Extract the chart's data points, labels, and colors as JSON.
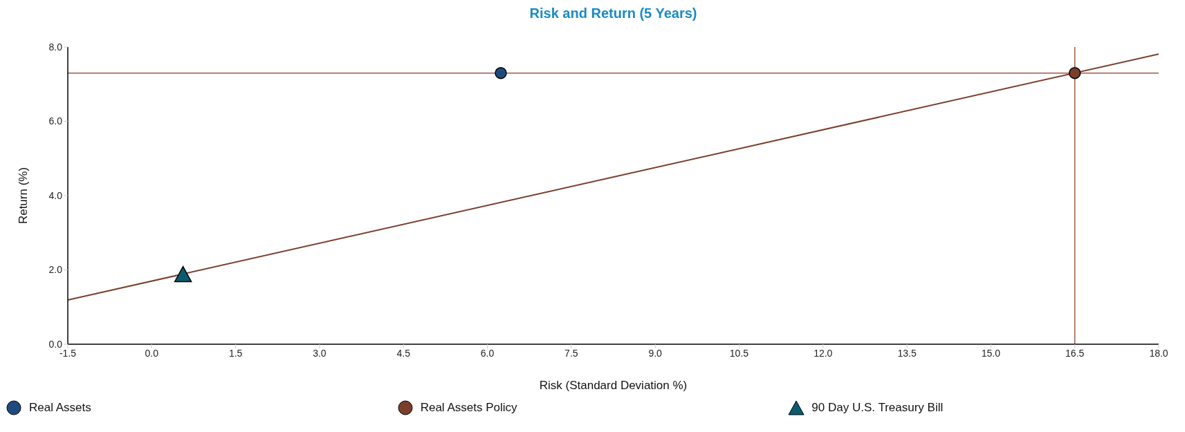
{
  "chart_data": {
    "type": "scatter",
    "title": "Risk and Return (5 Years)",
    "xlabel": "Risk (Standard Deviation %)",
    "ylabel": "Return (%)",
    "xlim": [
      -1.5,
      18
    ],
    "xticks": [
      -1.5,
      {
        "value": 0,
        "label": "0.0"
      },
      1.5,
      {
        "value": 3,
        "label": "3.0"
      },
      4.5,
      {
        "value": 6,
        "label": "6.0"
      },
      7.5,
      {
        "value": 9,
        "label": "9.0"
      },
      10.5,
      {
        "value": 12,
        "label": "12.0"
      },
      13.5,
      {
        "value": 15,
        "label": "15.0"
      },
      16.5,
      {
        "value": 18,
        "label": "18.0"
      }
    ],
    "ylim": [
      0,
      8
    ],
    "yticks": [
      {
        "value": 0,
        "label": "0.0"
      },
      {
        "value": 2,
        "label": "2.0"
      },
      {
        "value": 4,
        "label": "4.0"
      },
      {
        "value": 6,
        "label": "6.0"
      },
      {
        "value": 8,
        "label": "8.0"
      }
    ],
    "legend": "bottom",
    "series": [
      {
        "name": "Real Assets",
        "marker": "circle",
        "color": "#1f4a7e",
        "x": [
          6.24
        ],
        "values": [
          7.3
        ]
      },
      {
        "name": "Real Assets Policy",
        "marker": "circle",
        "color": "#7a3e2a",
        "x": [
          16.5
        ],
        "values": [
          7.3
        ]
      },
      {
        "name": "90 Day U.S. Treasury Bill",
        "marker": "triangle",
        "color": "#0b5b70",
        "x": [
          0.56
        ],
        "values": [
          1.85
        ]
      },
      {
        "type": "line",
        "marker": "none",
        "color": "#7a3e2a",
        "x": [
          -1.5,
          18
        ],
        "values": [
          1.19,
          7.81
        ]
      }
    ],
    "ref_lines": [
      {
        "axis": "y",
        "value": 7.3,
        "color": "#9a5a45"
      },
      {
        "axis": "x",
        "value": 16.5,
        "color": "#9a5a45"
      }
    ]
  }
}
